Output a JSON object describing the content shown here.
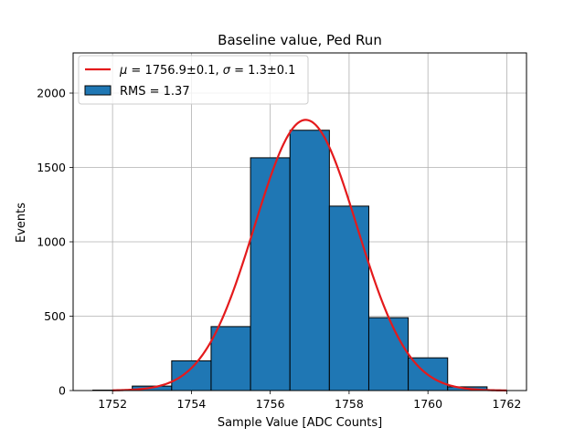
{
  "chart_data": {
    "type": "bar",
    "title": "Baseline value, Ped Run",
    "xlabel": "Sample Value [ADC Counts]",
    "ylabel": "Events",
    "xlim": [
      1751.0,
      1762.5
    ],
    "ylim": [
      0,
      2270
    ],
    "xticks": [
      1752,
      1754,
      1756,
      1758,
      1760,
      1762
    ],
    "yticks": [
      0,
      500,
      1000,
      1500,
      2000
    ],
    "grid": true,
    "legend_position": "upper-left",
    "histogram": {
      "name": "RMS = 1.37",
      "color": "#1f77b4",
      "edgecolor": "#000000",
      "bins": [
        {
          "x0": 1751.5,
          "x1": 1752.5,
          "value": 3
        },
        {
          "x0": 1752.5,
          "x1": 1753.5,
          "value": 30
        },
        {
          "x0": 1753.5,
          "x1": 1754.5,
          "value": 200
        },
        {
          "x0": 1754.5,
          "x1": 1755.5,
          "value": 430
        },
        {
          "x0": 1755.5,
          "x1": 1756.5,
          "value": 1565
        },
        {
          "x0": 1756.5,
          "x1": 1757.5,
          "value": 1750
        },
        {
          "x0": 1757.5,
          "x1": 1758.5,
          "value": 1240
        },
        {
          "x0": 1758.5,
          "x1": 1759.5,
          "value": 490
        },
        {
          "x0": 1759.5,
          "x1": 1760.5,
          "value": 220
        },
        {
          "x0": 1760.5,
          "x1": 1761.5,
          "value": 25
        }
      ]
    },
    "fit": {
      "name": "$\\mu = 1756.9\\pm0.1$, $\\sigma = 1.3\\pm0.1$",
      "legend_parts": {
        "mu_symbol": "μ",
        "mu_text": " = 1756.9±0.1, ",
        "sigma_symbol": "σ",
        "sigma_text": " = 1.3±0.1"
      },
      "color": "#e41a1c",
      "mu": 1756.9,
      "sigma": 1.3,
      "amplitude": 1820,
      "x_range": [
        1752,
        1762
      ]
    }
  }
}
